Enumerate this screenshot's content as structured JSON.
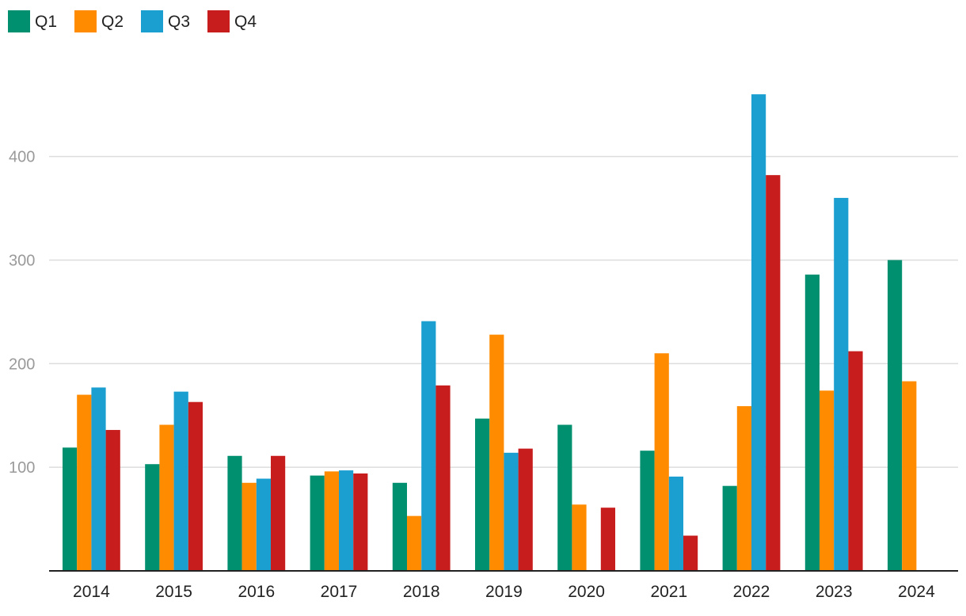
{
  "chart_data": {
    "type": "bar",
    "title": "",
    "xlabel": "",
    "ylabel": "",
    "categories": [
      "2014",
      "2015",
      "2016",
      "2017",
      "2018",
      "2019",
      "2020",
      "2021",
      "2022",
      "2023",
      "2024"
    ],
    "series": [
      {
        "name": "Q1",
        "color": "#008f6f",
        "values": [
          119,
          103,
          111,
          92,
          85,
          147,
          141,
          116,
          82,
          286,
          300
        ]
      },
      {
        "name": "Q2",
        "color": "#ff8c00",
        "values": [
          170,
          141,
          85,
          96,
          53,
          228,
          64,
          210,
          159,
          174,
          183
        ]
      },
      {
        "name": "Q3",
        "color": "#1a9fd0",
        "values": [
          177,
          173,
          89,
          97,
          241,
          114,
          0,
          91,
          460,
          360,
          null
        ]
      },
      {
        "name": "Q4",
        "color": "#c71e1d",
        "values": [
          136,
          163,
          111,
          94,
          179,
          118,
          61,
          34,
          382,
          212,
          null
        ]
      }
    ],
    "yticks": [
      100,
      200,
      300,
      400
    ],
    "ylim": [
      0,
      470
    ],
    "grid": true,
    "legend_position": "top-left"
  }
}
